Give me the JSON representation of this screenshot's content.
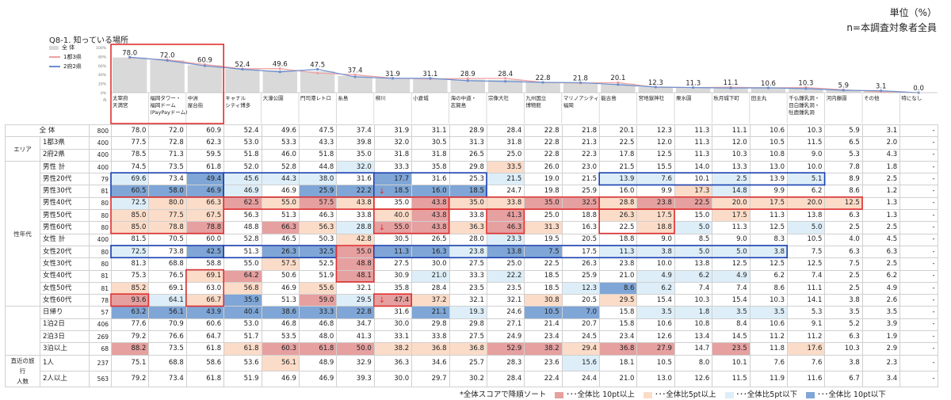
{
  "header": {
    "unit": "単位（%）",
    "base": "n=本調査対象者全員",
    "question": "Q8-1. 知っている場所"
  },
  "legend": {
    "total": "全 体",
    "a": "1都3県",
    "b": "2府2県"
  },
  "footnote": {
    "sort_note": "*全体スコアで降順ソート",
    "k1": "･･･全体比 10pt以上",
    "k2": "･･･全体比5pt以上",
    "k3": "･･･全体比5pt以下",
    "k4": "･･･全体比 10pt以下"
  },
  "colors": {
    "hi2": "#e6a0a0",
    "hi1": "#fbdcc8",
    "lo1": "#ddeef8",
    "lo2": "#7fa6d6",
    "bar": "#d9d9d9",
    "line_a": "#f0a0a0",
    "line_b": "#6a8fd0",
    "frame_red": "#e03030",
    "frame_blue": "#1a3fb0"
  },
  "chart_data": {
    "type": "bar",
    "n_label": "n",
    "y_ticks": [
      "100%",
      "80%",
      "60%",
      "40%",
      "20%",
      "0%"
    ],
    "ylim": [
      0,
      100
    ],
    "categories": [
      "太宰府\n天満宮",
      "福岡タワー・\n福岡ドーム\n(PayPayドーム)",
      "中洲\n屋台街",
      "キャナル\nシティ博多",
      "大濠公園",
      "門司港レトロ",
      "糸島",
      "柳川",
      "小倉城",
      "海の中道・\n志賀島",
      "宗像大社",
      "九州国立\n博物館",
      "マリノアシティ\n福岡",
      "能古島",
      "宮地嶽神社",
      "栗水園",
      "秋月城下町",
      "田主丸",
      "千仏鍾乳洞・\n目白鍾乳洞・\n牡鹿鍾乳洞",
      "河内藤園",
      "その他",
      "特になし"
    ],
    "series": [
      {
        "name": "全 体",
        "values": [
          78.0,
          72.0,
          60.9,
          52.4,
          49.6,
          47.5,
          37.4,
          31.9,
          31.1,
          28.9,
          28.4,
          22.8,
          21.8,
          20.1,
          12.3,
          11.3,
          11.1,
          10.6,
          10.3,
          5.9,
          3.1,
          0.0
        ]
      },
      {
        "name": "1都3県",
        "values": [
          77.5,
          72.8,
          62.3,
          53.0,
          53.3,
          43.3,
          39.8,
          32.0,
          30.5,
          31.3,
          31.8,
          22.8,
          21.3,
          22.5,
          12.0,
          11.3,
          12.0,
          10.5,
          11.5,
          6.5,
          2.0,
          0.0
        ]
      },
      {
        "name": "2府2県",
        "values": [
          78.5,
          71.3,
          59.5,
          51.8,
          46.0,
          51.8,
          35.0,
          31.8,
          31.8,
          26.5,
          25.0,
          22.8,
          22.3,
          17.8,
          12.5,
          11.3,
          10.3,
          10.8,
          9.0,
          5.3,
          4.3,
          0.0
        ]
      }
    ]
  },
  "table": {
    "rows": [
      {
        "g": "",
        "l": "全 体",
        "n": "800",
        "v": [
          "78.0",
          "72.0",
          "60.9",
          "52.4",
          "49.6",
          "47.5",
          "37.4",
          "31.9",
          "31.1",
          "28.9",
          "28.4",
          "22.8",
          "21.8",
          "20.1",
          "12.3",
          "11.3",
          "11.1",
          "10.6",
          "10.3",
          "5.9",
          "3.1",
          "-"
        ],
        "c": {}
      },
      {
        "g": "エリア",
        "l": "1都3県",
        "n": "400",
        "v": [
          "77.5",
          "72.8",
          "62.3",
          "53.0",
          "53.3",
          "43.3",
          "39.8",
          "32.0",
          "30.5",
          "31.3",
          "31.8",
          "22.8",
          "21.3",
          "22.5",
          "12.0",
          "11.3",
          "12.0",
          "10.5",
          "11.5",
          "6.5",
          "2.0",
          "-"
        ],
        "c": {}
      },
      {
        "g": "",
        "l": "2府2県",
        "n": "400",
        "v": [
          "78.5",
          "71.3",
          "59.5",
          "51.8",
          "46.0",
          "51.8",
          "35.0",
          "31.8",
          "31.8",
          "26.5",
          "25.0",
          "22.8",
          "22.3",
          "17.8",
          "12.5",
          "11.3",
          "10.3",
          "10.8",
          "9.0",
          "5.3",
          "4.3",
          "-"
        ],
        "c": {}
      },
      {
        "g": "",
        "l": "男性 計",
        "n": "400",
        "v": [
          "74.5",
          "73.5",
          "61.8",
          "52.0",
          "52.8",
          "44.8",
          "32.0",
          "33.3",
          "35.8",
          "29.8",
          "33.5",
          "26.0",
          "23.0",
          "21.5",
          "15.5",
          "14.0",
          "13.3",
          "13.0",
          "10.0",
          "7.8",
          "1.8",
          "-"
        ],
        "c": {
          "6": "lo1",
          "10": "hi1"
        }
      },
      {
        "g": "",
        "l": "男性20代",
        "n": "79",
        "v": [
          "69.6",
          "73.4",
          "49.4",
          "45.6",
          "44.3",
          "38.0",
          "31.6",
          "17.7",
          "31.6",
          "25.3",
          "21.5",
          "19.0",
          "21.5",
          "13.9",
          "7.6",
          "10.1",
          "2.5",
          "13.9",
          "5.1",
          "8.9",
          "2.5",
          "-"
        ],
        "c": {
          "0": "lo1",
          "2": "lo2",
          "3": "lo1",
          "4": "lo1",
          "5": "lo1",
          "7": "lo2",
          "10": "lo1",
          "13": "lo1",
          "14": "lo1",
          "16": "lo1",
          "18": "lo1"
        }
      },
      {
        "g": "",
        "l": "男性30代",
        "n": "81",
        "v": [
          "60.5",
          "58.0",
          "46.9",
          "46.9",
          "46.9",
          "25.9",
          "22.2",
          "18.5",
          "16.0",
          "18.5",
          "24.7",
          "19.8",
          "25.9",
          "16.0",
          "9.9",
          "17.3",
          "14.8",
          "9.9",
          "6.2",
          "8.6",
          "1.2",
          "-"
        ],
        "c": {
          "0": "lo2",
          "1": "lo2",
          "2": "lo2",
          "3": "lo1",
          "5": "lo2",
          "6": "lo2",
          "7": "lo2",
          "8": "lo2",
          "9": "lo2",
          "15": "hi1",
          "16": "lo1"
        }
      },
      {
        "g": "",
        "l": "男性40代",
        "n": "80",
        "v": [
          "72.5",
          "80.0",
          "66.3",
          "62.5",
          "55.0",
          "57.5",
          "43.8",
          "35.0",
          "43.8",
          "35.0",
          "33.8",
          "35.0",
          "32.5",
          "28.8",
          "23.8",
          "22.5",
          "20.0",
          "17.5",
          "20.0",
          "12.5",
          "1.3",
          "-"
        ],
        "c": {
          "0": "lo1",
          "1": "hi1",
          "2": "hi1",
          "3": "hi2",
          "4": "hi1",
          "5": "hi2",
          "6": "hi1",
          "8": "hi2",
          "9": "hi1",
          "10": "hi1",
          "11": "hi2",
          "12": "hi2",
          "13": "hi1",
          "14": "hi2",
          "15": "hi2",
          "16": "hi1",
          "17": "hi1",
          "18": "hi1",
          "19": "hi1"
        }
      },
      {
        "g": "性年代",
        "l": "男性50代",
        "n": "80",
        "v": [
          "85.0",
          "77.5",
          "67.5",
          "56.3",
          "51.3",
          "46.3",
          "33.8",
          "40.0",
          "43.8",
          "33.8",
          "41.3",
          "25.0",
          "18.8",
          "26.3",
          "17.5",
          "15.0",
          "17.5",
          "11.3",
          "13.8",
          "6.3",
          "1.3",
          "-"
        ],
        "c": {
          "0": "hi1",
          "1": "hi1",
          "2": "hi1",
          "7": "hi1",
          "8": "hi2",
          "10": "hi2",
          "13": "hi1",
          "14": "hi1",
          "16": "hi1"
        }
      },
      {
        "g": "",
        "l": "男性60代",
        "n": "80",
        "v": [
          "85.0",
          "78.8",
          "78.8",
          "48.8",
          "66.3",
          "56.3",
          "28.8",
          "55.0",
          "43.8",
          "36.3",
          "46.3",
          "31.3",
          "16.3",
          "22.5",
          "18.8",
          "5.0",
          "11.3",
          "12.5",
          "5.0",
          "2.5",
          "2.5",
          "-"
        ],
        "c": {
          "0": "hi1",
          "1": "hi1",
          "2": "hi2",
          "4": "hi2",
          "5": "hi1",
          "6": "lo1",
          "7": "hi2",
          "8": "hi2",
          "9": "hi1",
          "10": "hi2",
          "11": "hi1",
          "14": "hi1",
          "15": "lo1",
          "18": "lo1"
        }
      },
      {
        "g": "",
        "l": "女性 計",
        "n": "400",
        "v": [
          "81.5",
          "70.5",
          "60.0",
          "52.8",
          "46.5",
          "50.3",
          "42.8",
          "30.5",
          "26.5",
          "28.0",
          "23.3",
          "19.5",
          "20.5",
          "18.8",
          "9.0",
          "8.5",
          "9.0",
          "8.3",
          "10.5",
          "4.0",
          "4.5",
          "-"
        ],
        "c": {
          "6": "hi1",
          "10": "lo1"
        }
      },
      {
        "g": "",
        "l": "女性20代",
        "n": "80",
        "v": [
          "72.5",
          "73.8",
          "42.5",
          "51.3",
          "26.3",
          "32.5",
          "55.0",
          "11.3",
          "16.3",
          "23.8",
          "13.8",
          "7.5",
          "17.5",
          "11.3",
          "3.8",
          "5.0",
          "5.0",
          "3.8",
          "7.5",
          "6.3",
          "6.3",
          "-"
        ],
        "c": {
          "0": "lo1",
          "2": "lo2",
          "4": "lo2",
          "5": "lo2",
          "6": "hi2",
          "7": "lo2",
          "8": "lo2",
          "9": "lo1",
          "10": "lo2",
          "11": "lo2",
          "13": "lo1",
          "14": "lo1",
          "15": "lo1",
          "16": "lo1",
          "17": "lo1"
        }
      },
      {
        "g": "",
        "l": "女性30代",
        "n": "80",
        "v": [
          "81.3",
          "68.8",
          "58.8",
          "55.0",
          "57.5",
          "52.5",
          "48.8",
          "27.5",
          "30.0",
          "27.5",
          "25.0",
          "22.5",
          "26.3",
          "23.8",
          "10.0",
          "13.8",
          "12.5",
          "12.5",
          "12.5",
          "7.5",
          "2.5",
          "-"
        ],
        "c": {
          "4": "hi1",
          "6": "hi2"
        }
      },
      {
        "g": "",
        "l": "女性40代",
        "n": "81",
        "v": [
          "75.3",
          "76.5",
          "69.1",
          "64.2",
          "50.6",
          "51.9",
          "48.1",
          "30.9",
          "21.0",
          "33.3",
          "22.2",
          "18.5",
          "25.9",
          "21.0",
          "4.9",
          "6.2",
          "4.9",
          "6.2",
          "7.4",
          "2.5",
          "6.2",
          "-"
        ],
        "c": {
          "2": "hi1",
          "3": "hi2",
          "6": "hi2",
          "8": "lo1",
          "10": "lo1",
          "14": "lo1",
          "15": "lo1",
          "16": "lo1"
        }
      },
      {
        "g": "",
        "l": "女性50代",
        "n": "81",
        "v": [
          "85.2",
          "69.1",
          "63.0",
          "56.8",
          "46.9",
          "55.6",
          "32.1",
          "35.8",
          "28.4",
          "23.5",
          "23.5",
          "18.5",
          "12.3",
          "8.6",
          "6.2",
          "7.4",
          "7.4",
          "8.6",
          "11.1",
          "2.5",
          "4.9",
          "-"
        ],
        "c": {
          "0": "hi1",
          "3": "hi1",
          "5": "hi1",
          "12": "lo1",
          "13": "lo2",
          "14": "lo1"
        }
      },
      {
        "g": "",
        "l": "女性60代",
        "n": "78",
        "v": [
          "93.6",
          "64.1",
          "66.7",
          "35.9",
          "51.3",
          "59.0",
          "29.5",
          "47.4",
          "37.2",
          "32.1",
          "32.1",
          "30.8",
          "20.5",
          "29.5",
          "15.4",
          "10.3",
          "15.4",
          "10.3",
          "14.1",
          "3.8",
          "2.6",
          "-"
        ],
        "c": {
          "0": "hi2",
          "1": "lo1",
          "2": "hi1",
          "3": "lo2",
          "5": "hi2",
          "6": "lo1",
          "7": "hi2",
          "8": "hi1",
          "11": "hi1",
          "13": "hi1"
        }
      },
      {
        "g": "",
        "l": "日帰り",
        "n": "57",
        "v": [
          "63.2",
          "56.1",
          "43.9",
          "40.4",
          "38.6",
          "33.3",
          "22.8",
          "31.6",
          "21.1",
          "19.3",
          "24.6",
          "10.5",
          "7.0",
          "15.8",
          "3.5",
          "1.8",
          "3.5",
          "3.5",
          "5.3",
          "3.5",
          "3.5",
          "-"
        ],
        "c": {
          "0": "lo2",
          "1": "lo2",
          "2": "lo2",
          "3": "lo2",
          "4": "lo2",
          "5": "lo2",
          "6": "lo2",
          "8": "lo2",
          "9": "lo1",
          "11": "lo2",
          "12": "lo2",
          "14": "lo1",
          "15": "lo1",
          "16": "lo1",
          "17": "lo1"
        }
      },
      {
        "g": "直近の旅行\n日帰りor宿泊",
        "l": "1泊2日",
        "n": "406",
        "v": [
          "77.6",
          "70.9",
          "60.6",
          "53.0",
          "46.8",
          "46.8",
          "34.7",
          "30.0",
          "29.8",
          "29.8",
          "27.1",
          "21.4",
          "20.7",
          "15.8",
          "10.6",
          "10.8",
          "8.4",
          "10.6",
          "9.1",
          "5.2",
          "3.9",
          "-"
        ],
        "c": {}
      },
      {
        "g": "",
        "l": "2泊3日",
        "n": "269",
        "v": [
          "79.2",
          "76.6",
          "64.7",
          "51.7",
          "53.5",
          "48.0",
          "41.3",
          "33.1",
          "33.8",
          "27.5",
          "24.9",
          "23.4",
          "24.5",
          "23.4",
          "12.6",
          "13.4",
          "14.5",
          "11.2",
          "11.2",
          "6.3",
          "1.9",
          "-"
        ],
        "c": {}
      },
      {
        "g": "",
        "l": "3泊以上",
        "n": "68",
        "v": [
          "88.2",
          "73.5",
          "61.8",
          "61.8",
          "60.3",
          "61.8",
          "50.0",
          "38.2",
          "36.8",
          "36.8",
          "52.9",
          "38.2",
          "29.4",
          "36.8",
          "27.9",
          "14.7",
          "23.5",
          "11.8",
          "17.6",
          "10.3",
          "2.9",
          "-"
        ],
        "c": {
          "0": "hi2",
          "3": "hi1",
          "4": "hi2",
          "5": "hi2",
          "6": "hi2",
          "7": "hi1",
          "8": "hi1",
          "9": "hi1",
          "10": "hi2",
          "11": "hi2",
          "12": "hi1",
          "13": "hi2",
          "14": "hi2",
          "16": "hi2",
          "18": "hi1"
        }
      },
      {
        "g": "直近の旅行\n人数",
        "l": "1人",
        "n": "237",
        "v": [
          "75.1",
          "68.8",
          "58.6",
          "53.6",
          "56.1",
          "48.9",
          "32.9",
          "36.3",
          "34.6",
          "25.7",
          "28.3",
          "23.6",
          "15.6",
          "18.1",
          "10.5",
          "8.0",
          "10.1",
          "7.6",
          "7.6",
          "3.8",
          "2.3",
          "-"
        ],
        "c": {
          "4": "hi1",
          "12": "lo1"
        }
      },
      {
        "g": "",
        "l": "2人以上",
        "n": "563",
        "v": [
          "79.2",
          "73.4",
          "61.8",
          "51.9",
          "46.9",
          "46.9",
          "39.3",
          "30.0",
          "29.7",
          "30.2",
          "28.4",
          "22.4",
          "24.4",
          "21.0",
          "13.0",
          "12.6",
          "11.5",
          "11.9",
          "11.6",
          "6.7",
          "3.4",
          "-"
        ],
        "c": {}
      }
    ]
  }
}
